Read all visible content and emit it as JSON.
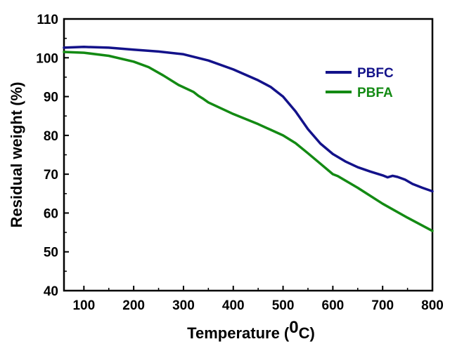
{
  "chart_data": {
    "type": "line",
    "xlabel": "Temperature (",
    "xlabel_sup": "0",
    "xlabel_end": "C)",
    "ylabel": "Residual weight (%)",
    "xlim": [
      60,
      800
    ],
    "ylim": [
      40,
      110
    ],
    "xticks": [
      "100",
      "200",
      "300",
      "400",
      "500",
      "600",
      "700",
      "800"
    ],
    "yticks": [
      "40",
      "50",
      "60",
      "70",
      "80",
      "90",
      "100",
      "110"
    ],
    "legend_position": "top-right",
    "grid": false,
    "series": [
      {
        "name": "PBFC",
        "color": "#13128a",
        "x": [
          60,
          100,
          150,
          200,
          250,
          300,
          350,
          400,
          450,
          475,
          500,
          525,
          550,
          575,
          600,
          625,
          650,
          675,
          700,
          710,
          720,
          730,
          745,
          760,
          780,
          800
        ],
        "y": [
          102.6,
          102.8,
          102.6,
          102.1,
          101.6,
          100.9,
          99.3,
          97.0,
          94.2,
          92.5,
          90.0,
          86.2,
          81.6,
          77.9,
          75.2,
          73.3,
          71.8,
          70.7,
          69.7,
          69.2,
          69.6,
          69.3,
          68.6,
          67.5,
          66.5,
          65.6
        ]
      },
      {
        "name": "PBFA",
        "color": "#138a13",
        "x": [
          60,
          100,
          150,
          200,
          230,
          260,
          290,
          320,
          330,
          340,
          350,
          400,
          450,
          500,
          525,
          550,
          575,
          600,
          610,
          650,
          700,
          750,
          800
        ],
        "y": [
          101.5,
          101.3,
          100.5,
          99.0,
          97.6,
          95.4,
          93.0,
          91.2,
          90.2,
          89.4,
          88.5,
          85.5,
          82.9,
          80.0,
          78.0,
          75.4,
          72.7,
          70.0,
          69.5,
          66.5,
          62.4,
          58.8,
          55.4
        ]
      }
    ]
  }
}
